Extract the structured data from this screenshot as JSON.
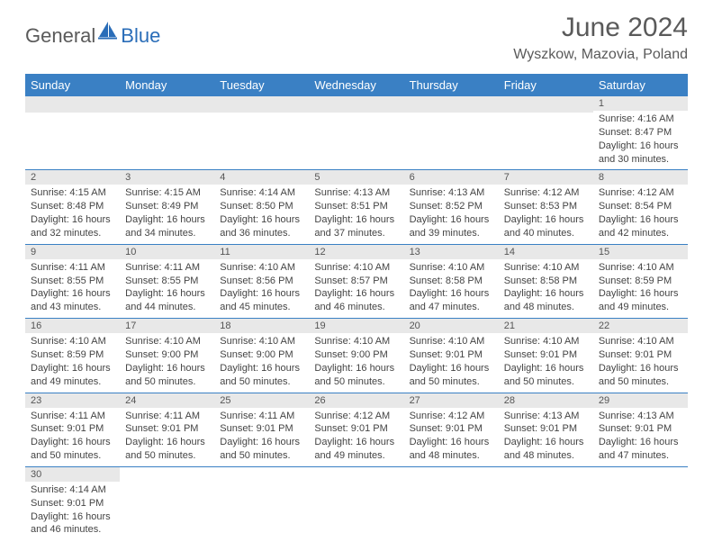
{
  "logo": {
    "part1": "General",
    "part2": "Blue"
  },
  "title": "June 2024",
  "location": "Wyszkow, Mazovia, Poland",
  "colors": {
    "header_bg": "#3a80c4",
    "header_text": "#ffffff",
    "daynum_bg": "#e8e8e8",
    "cell_border": "#3a80c4",
    "body_text": "#444444",
    "title_text": "#5a5a5a",
    "logo_gray": "#5a5a5a",
    "logo_blue": "#2a6db8"
  },
  "weekdays": [
    "Sunday",
    "Monday",
    "Tuesday",
    "Wednesday",
    "Thursday",
    "Friday",
    "Saturday"
  ],
  "weeks": [
    [
      null,
      null,
      null,
      null,
      null,
      null,
      {
        "n": "1",
        "sr": "Sunrise: 4:16 AM",
        "ss": "Sunset: 8:47 PM",
        "d1": "Daylight: 16 hours",
        "d2": "and 30 minutes."
      }
    ],
    [
      {
        "n": "2",
        "sr": "Sunrise: 4:15 AM",
        "ss": "Sunset: 8:48 PM",
        "d1": "Daylight: 16 hours",
        "d2": "and 32 minutes."
      },
      {
        "n": "3",
        "sr": "Sunrise: 4:15 AM",
        "ss": "Sunset: 8:49 PM",
        "d1": "Daylight: 16 hours",
        "d2": "and 34 minutes."
      },
      {
        "n": "4",
        "sr": "Sunrise: 4:14 AM",
        "ss": "Sunset: 8:50 PM",
        "d1": "Daylight: 16 hours",
        "d2": "and 36 minutes."
      },
      {
        "n": "5",
        "sr": "Sunrise: 4:13 AM",
        "ss": "Sunset: 8:51 PM",
        "d1": "Daylight: 16 hours",
        "d2": "and 37 minutes."
      },
      {
        "n": "6",
        "sr": "Sunrise: 4:13 AM",
        "ss": "Sunset: 8:52 PM",
        "d1": "Daylight: 16 hours",
        "d2": "and 39 minutes."
      },
      {
        "n": "7",
        "sr": "Sunrise: 4:12 AM",
        "ss": "Sunset: 8:53 PM",
        "d1": "Daylight: 16 hours",
        "d2": "and 40 minutes."
      },
      {
        "n": "8",
        "sr": "Sunrise: 4:12 AM",
        "ss": "Sunset: 8:54 PM",
        "d1": "Daylight: 16 hours",
        "d2": "and 42 minutes."
      }
    ],
    [
      {
        "n": "9",
        "sr": "Sunrise: 4:11 AM",
        "ss": "Sunset: 8:55 PM",
        "d1": "Daylight: 16 hours",
        "d2": "and 43 minutes."
      },
      {
        "n": "10",
        "sr": "Sunrise: 4:11 AM",
        "ss": "Sunset: 8:55 PM",
        "d1": "Daylight: 16 hours",
        "d2": "and 44 minutes."
      },
      {
        "n": "11",
        "sr": "Sunrise: 4:10 AM",
        "ss": "Sunset: 8:56 PM",
        "d1": "Daylight: 16 hours",
        "d2": "and 45 minutes."
      },
      {
        "n": "12",
        "sr": "Sunrise: 4:10 AM",
        "ss": "Sunset: 8:57 PM",
        "d1": "Daylight: 16 hours",
        "d2": "and 46 minutes."
      },
      {
        "n": "13",
        "sr": "Sunrise: 4:10 AM",
        "ss": "Sunset: 8:58 PM",
        "d1": "Daylight: 16 hours",
        "d2": "and 47 minutes."
      },
      {
        "n": "14",
        "sr": "Sunrise: 4:10 AM",
        "ss": "Sunset: 8:58 PM",
        "d1": "Daylight: 16 hours",
        "d2": "and 48 minutes."
      },
      {
        "n": "15",
        "sr": "Sunrise: 4:10 AM",
        "ss": "Sunset: 8:59 PM",
        "d1": "Daylight: 16 hours",
        "d2": "and 49 minutes."
      }
    ],
    [
      {
        "n": "16",
        "sr": "Sunrise: 4:10 AM",
        "ss": "Sunset: 8:59 PM",
        "d1": "Daylight: 16 hours",
        "d2": "and 49 minutes."
      },
      {
        "n": "17",
        "sr": "Sunrise: 4:10 AM",
        "ss": "Sunset: 9:00 PM",
        "d1": "Daylight: 16 hours",
        "d2": "and 50 minutes."
      },
      {
        "n": "18",
        "sr": "Sunrise: 4:10 AM",
        "ss": "Sunset: 9:00 PM",
        "d1": "Daylight: 16 hours",
        "d2": "and 50 minutes."
      },
      {
        "n": "19",
        "sr": "Sunrise: 4:10 AM",
        "ss": "Sunset: 9:00 PM",
        "d1": "Daylight: 16 hours",
        "d2": "and 50 minutes."
      },
      {
        "n": "20",
        "sr": "Sunrise: 4:10 AM",
        "ss": "Sunset: 9:01 PM",
        "d1": "Daylight: 16 hours",
        "d2": "and 50 minutes."
      },
      {
        "n": "21",
        "sr": "Sunrise: 4:10 AM",
        "ss": "Sunset: 9:01 PM",
        "d1": "Daylight: 16 hours",
        "d2": "and 50 minutes."
      },
      {
        "n": "22",
        "sr": "Sunrise: 4:10 AM",
        "ss": "Sunset: 9:01 PM",
        "d1": "Daylight: 16 hours",
        "d2": "and 50 minutes."
      }
    ],
    [
      {
        "n": "23",
        "sr": "Sunrise: 4:11 AM",
        "ss": "Sunset: 9:01 PM",
        "d1": "Daylight: 16 hours",
        "d2": "and 50 minutes."
      },
      {
        "n": "24",
        "sr": "Sunrise: 4:11 AM",
        "ss": "Sunset: 9:01 PM",
        "d1": "Daylight: 16 hours",
        "d2": "and 50 minutes."
      },
      {
        "n": "25",
        "sr": "Sunrise: 4:11 AM",
        "ss": "Sunset: 9:01 PM",
        "d1": "Daylight: 16 hours",
        "d2": "and 50 minutes."
      },
      {
        "n": "26",
        "sr": "Sunrise: 4:12 AM",
        "ss": "Sunset: 9:01 PM",
        "d1": "Daylight: 16 hours",
        "d2": "and 49 minutes."
      },
      {
        "n": "27",
        "sr": "Sunrise: 4:12 AM",
        "ss": "Sunset: 9:01 PM",
        "d1": "Daylight: 16 hours",
        "d2": "and 48 minutes."
      },
      {
        "n": "28",
        "sr": "Sunrise: 4:13 AM",
        "ss": "Sunset: 9:01 PM",
        "d1": "Daylight: 16 hours",
        "d2": "and 48 minutes."
      },
      {
        "n": "29",
        "sr": "Sunrise: 4:13 AM",
        "ss": "Sunset: 9:01 PM",
        "d1": "Daylight: 16 hours",
        "d2": "and 47 minutes."
      }
    ],
    [
      {
        "n": "30",
        "sr": "Sunrise: 4:14 AM",
        "ss": "Sunset: 9:01 PM",
        "d1": "Daylight: 16 hours",
        "d2": "and 46 minutes."
      },
      null,
      null,
      null,
      null,
      null,
      null
    ]
  ]
}
